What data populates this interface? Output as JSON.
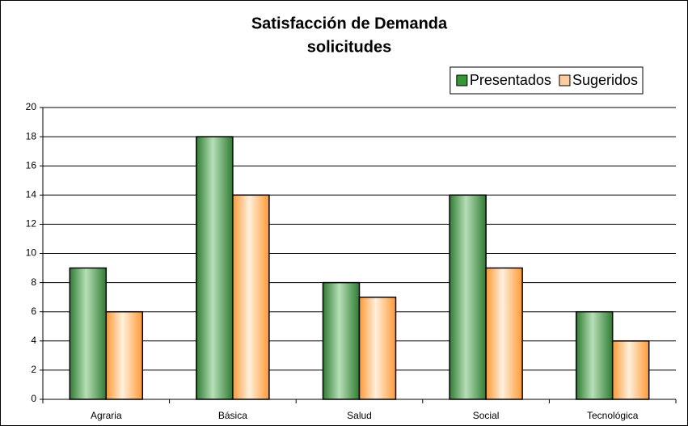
{
  "chart_data": {
    "type": "bar",
    "title": [
      "Satisfacción de Demanda",
      "solicitudes"
    ],
    "categories": [
      "Agraria",
      "Básica",
      "Salud",
      "Social",
      "Tecnológica"
    ],
    "series": [
      {
        "name": "Presentados",
        "color": "#339933",
        "values": [
          9,
          18,
          8,
          14,
          6
        ]
      },
      {
        "name": "Sugeridos",
        "color": "#ffcc99",
        "values": [
          6,
          14,
          7,
          9,
          4
        ]
      }
    ],
    "ylim": [
      0,
      20
    ],
    "yticks": [
      0,
      2,
      4,
      6,
      8,
      10,
      12,
      14,
      16,
      18,
      20
    ],
    "grid": true,
    "legend": "top-right"
  }
}
